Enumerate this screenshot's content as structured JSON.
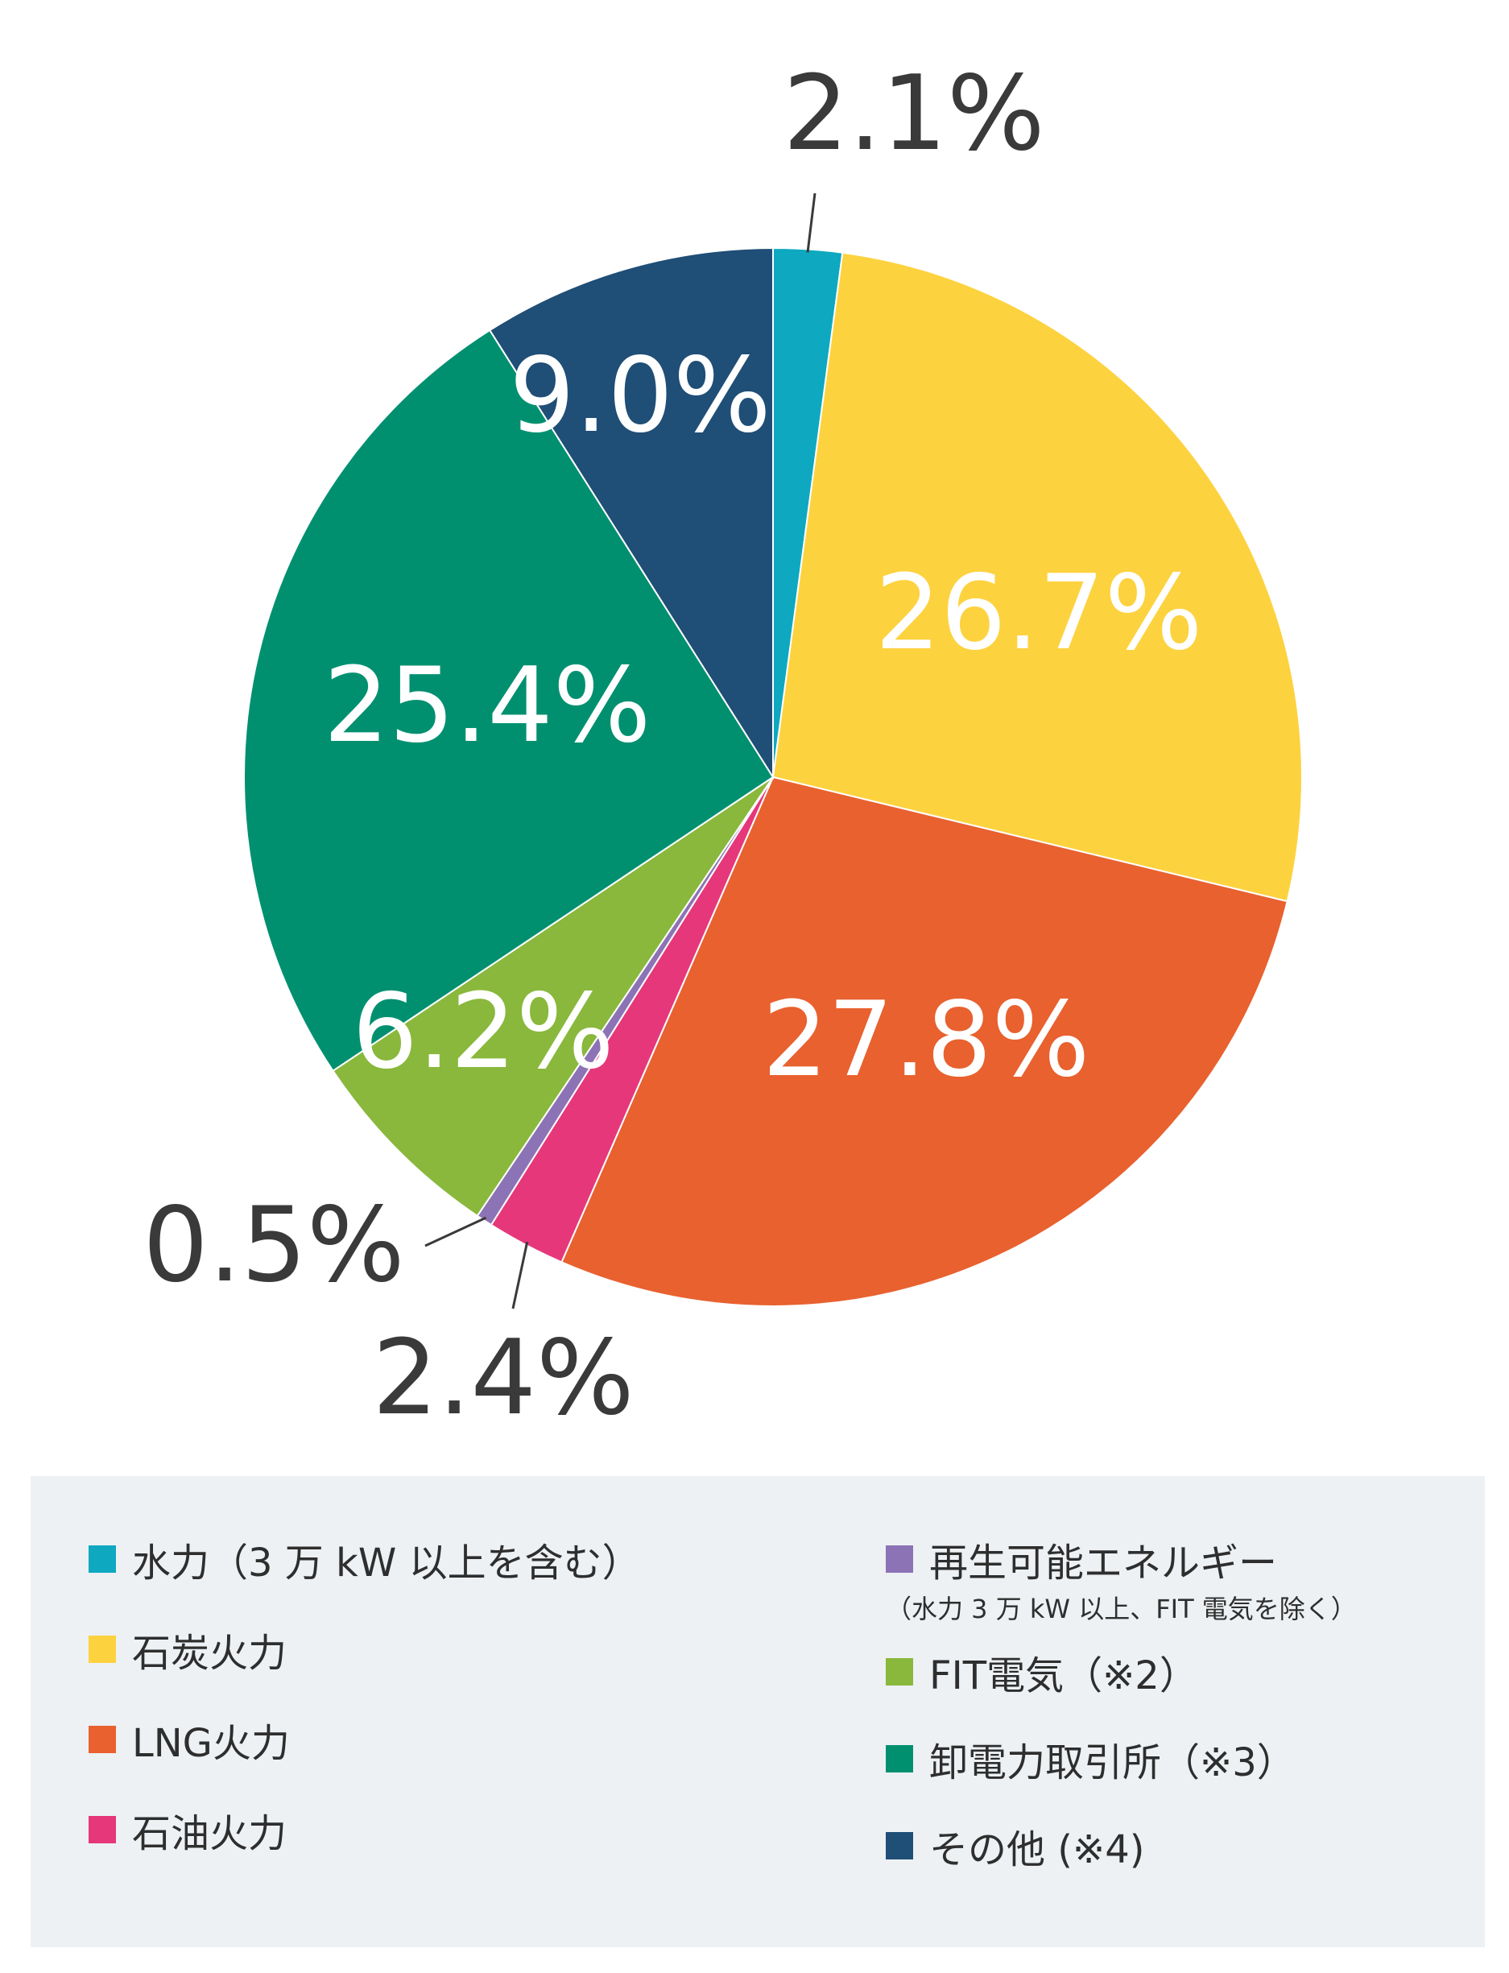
{
  "chart_data": {
    "type": "pie",
    "start": "12 o'clock, clockwise",
    "slices": [
      {
        "name": "水力（3 万 kW 以上を含む）",
        "value": 2.1,
        "label": "2.1%",
        "color": "#0ea8c0",
        "label_style": "outside"
      },
      {
        "name": "石炭火力",
        "value": 26.7,
        "label": "26.7%",
        "color": "#fdd23f",
        "label_style": "inside"
      },
      {
        "name": "LNG火力",
        "value": 27.8,
        "label": "27.8%",
        "color": "#e8612f",
        "label_style": "inside"
      },
      {
        "name": "石油火力",
        "value": 2.4,
        "label": "2.4%",
        "color": "#e6377a",
        "label_style": "outside"
      },
      {
        "name": "再生可能エネルギー",
        "value": 0.5,
        "label": "0.5%",
        "color": "#8c73b5",
        "label_style": "outside"
      },
      {
        "name": "FIT電気（※2）",
        "value": 6.2,
        "label": "6.2%",
        "color": "#89b83c",
        "label_style": "inside"
      },
      {
        "name": "卸電力取引所（※3）",
        "value": 25.4,
        "label": "25.4%",
        "color": "#009070",
        "label_style": "inside"
      },
      {
        "name": "その他 (※4)",
        "value": 9.0,
        "label": "9.0%",
        "color": "#1f4e76",
        "label_style": "inside"
      }
    ]
  },
  "legend": {
    "left": [
      {
        "label": "水力（3 万 kW 以上を含む）",
        "color": "#0ea8c0"
      },
      {
        "label": "石炭火力",
        "color": "#fdd23f"
      },
      {
        "label": "LNG火力",
        "color": "#e8612f"
      },
      {
        "label": "石油火力",
        "color": "#e6377a"
      }
    ],
    "right": [
      {
        "label": "再生可能エネルギー",
        "color": "#8c73b5"
      },
      {
        "label": "FIT電気（※2）",
        "color": "#89b83c"
      },
      {
        "label": "卸電力取引所（※3）",
        "color": "#009070"
      },
      {
        "label": "その他 (※4)",
        "color": "#1f4e76"
      }
    ],
    "renewable_note": "（水力 3 万 kW 以上、FIT 電気を除く）"
  }
}
